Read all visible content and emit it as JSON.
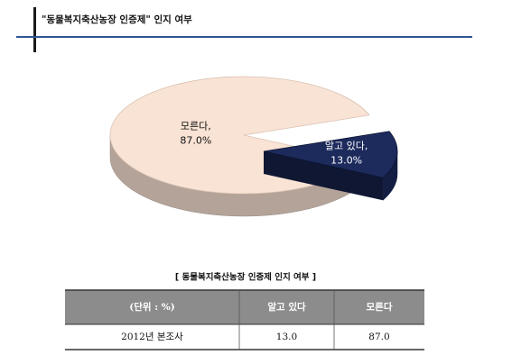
{
  "header": {
    "title": "\"동물복지축산농장 인증제\" 인지 여부"
  },
  "chart_data": {
    "type": "pie",
    "categories": [
      "알고 있다,",
      "모른다,"
    ],
    "values": [
      13.0,
      87.0
    ],
    "value_labels": [
      "13.0%",
      "87.0%"
    ],
    "colors": [
      "#1c2a5c",
      "#f9e3d4"
    ]
  },
  "table": {
    "caption": "[ 동물복지축산농장 인증제 인지 여부 ]",
    "header": [
      "(단위 : %)",
      "알고 있다",
      "모른다"
    ],
    "rows": [
      [
        "2012년 본조사",
        "13.0",
        "87.0"
      ]
    ]
  }
}
